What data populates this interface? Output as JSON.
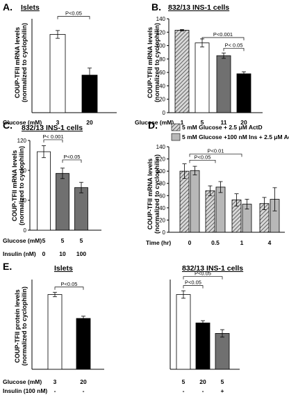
{
  "colors": {
    "white": "#ffffff",
    "black": "#000000",
    "dark_gray": "#707070",
    "light_gray": "#b8b8b8",
    "hatch_fg": "#444444",
    "hatch_bg": "#d8d8d8"
  },
  "chart_data": [
    {
      "panel": "A.",
      "title": "Islets",
      "type": "bar",
      "ylabel": [
        "COUP-TFII mRNA levels",
        "(normalized to cyclophilin)"
      ],
      "ylim": [
        0,
        120
      ],
      "yticks": [],
      "row_labels": [
        "Glucose (mM)"
      ],
      "rows": [
        [
          "3",
          "20"
        ]
      ],
      "values": [
        100,
        48
      ],
      "errors": [
        5,
        9
      ],
      "fills": [
        "white",
        "black"
      ],
      "annotations": [
        {
          "text": "P<0.05",
          "from": 0,
          "to": 1,
          "level": 123
        }
      ]
    },
    {
      "panel": "B.",
      "title": "832/13 INS-1 cells",
      "type": "bar",
      "ylabel": [
        "COUP-TFII mRNA levels",
        "(normalized to cyclophilin)"
      ],
      "ylim": [
        0,
        140
      ],
      "yticks": [
        0,
        20,
        40,
        60,
        80,
        100,
        120,
        140
      ],
      "row_labels": [
        "Glucose (mM)"
      ],
      "rows": [
        [
          "1",
          "5",
          "11",
          "20"
        ]
      ],
      "values": [
        123,
        104,
        85,
        58
      ],
      "errors": [
        1,
        6,
        4,
        3
      ],
      "fills": [
        "hatch",
        "white",
        "dark_gray",
        "black"
      ],
      "annotations": [
        {
          "text": "P<0.001",
          "from": 1,
          "to": 3,
          "level": 112
        },
        {
          "text": "P< 0.05",
          "from": 2,
          "to": 3,
          "level": 96
        }
      ]
    },
    {
      "panel": "C.",
      "title": "832/13 INS-1 cells",
      "type": "bar",
      "ylabel": [
        "COUP-TFII mRNA levels",
        "(normalized to cyclophilin)"
      ],
      "ylim": [
        0,
        120
      ],
      "yticks": [
        0,
        40,
        80,
        120
      ],
      "row_labels": [
        "Glucose (mM)",
        "Insulin (nM)"
      ],
      "rows": [
        [
          "5",
          "5",
          "5"
        ],
        [
          "0",
          "10",
          "100"
        ]
      ],
      "values": [
        105,
        76,
        57
      ],
      "errors": [
        8,
        7,
        7
      ],
      "fills": [
        "white",
        "dark_gray",
        "dark_gray"
      ],
      "annotations": [
        {
          "text": "P< 0.001",
          "from": 0,
          "to": 1,
          "level": 121
        },
        {
          "text": "P<0.05",
          "from": 1,
          "to": 2,
          "level": 94
        }
      ]
    },
    {
      "panel": "D.",
      "title": "",
      "type": "grouped_bar",
      "ylabel": [
        "COUP-TFII mRNA levels",
        "(normalized to cyclophilin)"
      ],
      "ylim": [
        0,
        140
      ],
      "yticks": [
        0,
        20,
        40,
        60,
        80,
        100,
        120,
        140
      ],
      "row_labels": [
        "Time (hr)"
      ],
      "rows": [
        [
          "0",
          "0.5",
          "1",
          "4"
        ]
      ],
      "legend": [
        "5 mM Glucose + 2.5 μM ActD",
        "5 mM Glucose +100 nM Ins + 2.5 μM ActD"
      ],
      "series": [
        {
          "name": "5 mM Glucose + 2.5 μM ActD",
          "fill": "hatch",
          "values": [
            100,
            68,
            53,
            47
          ],
          "errors": [
            12,
            8,
            10,
            10
          ]
        },
        {
          "name": "5 mM Glucose +100 nM Ins + 2.5 μM ActD",
          "fill": "light_gray",
          "values": [
            101,
            74,
            46,
            54
          ],
          "errors": [
            7,
            9,
            8,
            19
          ]
        }
      ],
      "annotations": [
        {
          "text": "P<0.05",
          "from": 0,
          "to": 1,
          "level": 118
        },
        {
          "text": "P<0.01",
          "from": 0,
          "to": 2,
          "level": 128
        }
      ]
    },
    {
      "panel": "E.",
      "title": "Islets",
      "type": "bar",
      "ylabel": [
        "COUP-TFII protein levels",
        "(normalized to cyclophilin)"
      ],
      "ylim": [
        0,
        120
      ],
      "yticks": [],
      "row_labels": [
        "Glucose (mM)",
        "Insulin (100 nM)"
      ],
      "rows": [
        [
          "3",
          "20"
        ],
        [
          "-",
          "-"
        ]
      ],
      "values": [
        100,
        68
      ],
      "errors": [
        3,
        3
      ],
      "fills": [
        "white",
        "black"
      ],
      "annotations": [
        {
          "text": "P<0.05",
          "from": 0,
          "to": 1,
          "level": 110
        }
      ]
    },
    {
      "panel": "",
      "title": "832/13 INS-1 cells",
      "type": "bar",
      "ylabel": [],
      "ylim": [
        0,
        120
      ],
      "yticks": [],
      "row_labels": [],
      "rows": [
        [
          "5",
          "20",
          "5"
        ],
        [
          "-",
          "-",
          "+"
        ]
      ],
      "values": [
        100,
        62
      ],
      "errors": [
        5,
        3
      ],
      "extra_value": 48,
      "extra_error": 5,
      "fills": [
        "white",
        "black",
        "dark_gray"
      ],
      "annotations": [
        {
          "text": "P<0.05",
          "from": 0,
          "to": 2,
          "level": 124
        },
        {
          "text": "P<0.05",
          "from": 0,
          "to": 1,
          "level": 112
        }
      ]
    }
  ]
}
